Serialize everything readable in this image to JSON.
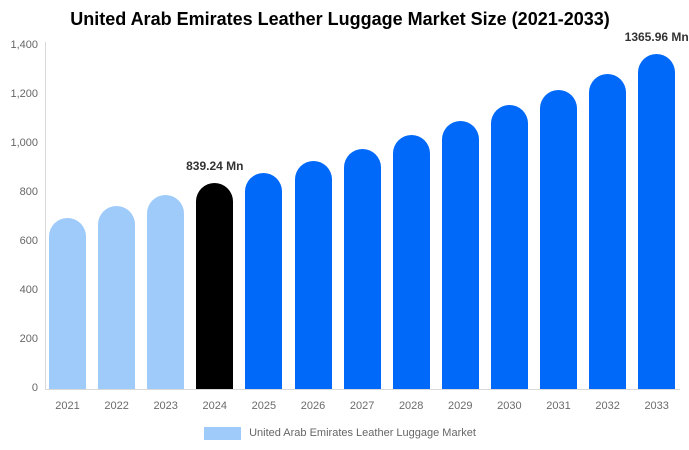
{
  "title": "United Arab Emirates Leather Luggage Market Size (2021-2033)",
  "legend": {
    "label": "United Arab Emirates Leather Luggage Market",
    "swatch_color": "#9fcbfa"
  },
  "chart_data": {
    "type": "bar",
    "title": "United Arab Emirates Leather Luggage Market Size (2021-2033)",
    "xlabel": "",
    "ylabel": "",
    "categories": [
      "2021",
      "2022",
      "2023",
      "2024",
      "2025",
      "2026",
      "2027",
      "2028",
      "2029",
      "2030",
      "2031",
      "2032",
      "2033"
    ],
    "values": [
      700,
      745,
      790,
      839.24,
      880,
      930,
      980,
      1035,
      1095,
      1160,
      1220,
      1285,
      1365.96
    ],
    "bar_colors": [
      "#9fcbfa",
      "#9fcbfa",
      "#9fcbfa",
      "#000000",
      "#0169fa",
      "#0169fa",
      "#0169fa",
      "#0169fa",
      "#0169fa",
      "#0169fa",
      "#0169fa",
      "#0169fa",
      "#0169fa"
    ],
    "point_labels": {
      "2024": "839.24 Mn",
      "2033": "1365.96 Mn"
    },
    "ylim": [
      0,
      1400
    ],
    "yticks": [
      0,
      200,
      400,
      600,
      800,
      1000,
      1200,
      1400
    ],
    "ytick_labels": [
      "0",
      "200",
      "400",
      "600",
      "800",
      "1,000",
      "1,200",
      "1,400"
    ],
    "grid": false,
    "legend_position": "bottom",
    "series_colors": {
      "historical": "#9fcbfa",
      "base_year": "#000000",
      "forecast": "#0169fa"
    },
    "axis_line_color": "#d9d9d9",
    "tick_text_color": "#666666",
    "value_label_color": "#333333"
  }
}
